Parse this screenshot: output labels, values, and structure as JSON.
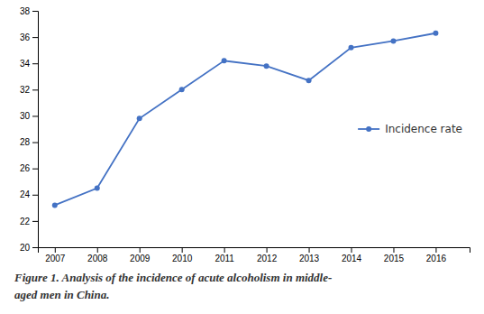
{
  "chart_data": {
    "type": "line",
    "x": [
      2007,
      2008,
      2009,
      2010,
      2011,
      2012,
      2013,
      2014,
      2015,
      2016
    ],
    "series": [
      {
        "name": "Incidence rate",
        "color": "#4472C4",
        "marker": "circle",
        "values": [
          23.2,
          24.5,
          29.8,
          32.0,
          34.2,
          33.8,
          32.7,
          35.2,
          35.7,
          36.3
        ]
      }
    ],
    "xlim": [
      2006.6,
      2016.8
    ],
    "xticks": [
      2007,
      2008,
      2009,
      2010,
      2011,
      2012,
      2013,
      2014,
      2015,
      2016
    ],
    "ylim": [
      20,
      38
    ],
    "yticks": [
      20,
      22,
      24,
      26,
      28,
      30,
      32,
      34,
      36,
      38
    ],
    "grid": false,
    "legend": "right",
    "annotations": [
      "Figure 1. Analysis of the incidence of acute alcoholism in middle-",
      "aged men in China."
    ]
  }
}
